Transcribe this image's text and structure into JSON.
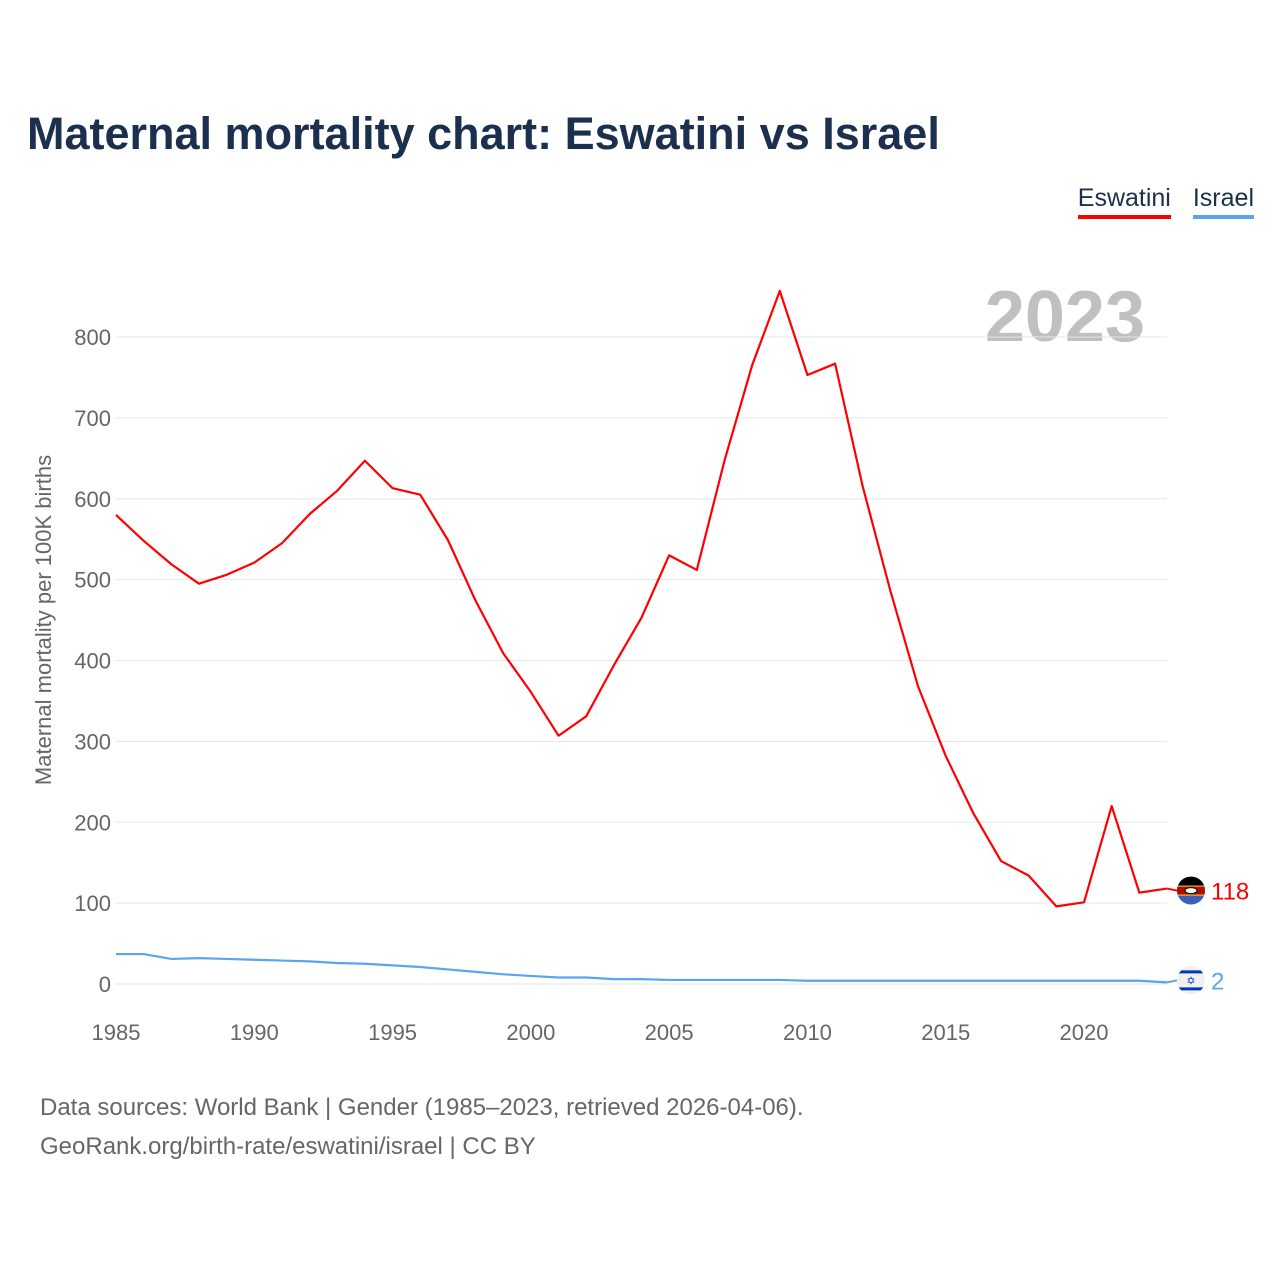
{
  "title": "Maternal mortality chart: Eswatini vs Israel",
  "source_line1": "Data sources: World Bank | Gender (1985–2023, retrieved 2026-04-06).",
  "source_line2": "GeoRank.org/birth-rate/eswatini/israel | CC BY",
  "chart_data": {
    "type": "line",
    "title": "Maternal mortality chart: Eswatini vs Israel",
    "ylabel": "Maternal mortality per 100K births",
    "xlabel": "",
    "year_label": "2023",
    "xlim": [
      1985,
      2023
    ],
    "ylim": [
      0,
      850
    ],
    "xticks": [
      1985,
      1990,
      1995,
      2000,
      2005,
      2010,
      2015,
      2020
    ],
    "yticks": [
      0,
      100,
      200,
      300,
      400,
      500,
      600,
      700,
      800
    ],
    "legend_position": "top-right",
    "x": [
      1985,
      1986,
      1987,
      1988,
      1989,
      1990,
      1991,
      1992,
      1993,
      1994,
      1995,
      1996,
      1997,
      1998,
      1999,
      2000,
      2001,
      2002,
      2003,
      2004,
      2005,
      2006,
      2007,
      2008,
      2009,
      2010,
      2011,
      2012,
      2013,
      2014,
      2015,
      2016,
      2017,
      2018,
      2019,
      2020,
      2021,
      2022,
      2023
    ],
    "series": [
      {
        "name": "Eswatini",
        "color": "#ff0000",
        "end_label": "118",
        "values": [
          580,
          548,
          519,
          495,
          506,
          521,
          545,
          581,
          610,
          647,
          613,
          605,
          549,
          474,
          409,
          361,
          307,
          331,
          394,
          453,
          530,
          512,
          647,
          765,
          857,
          753,
          767,
          615,
          486,
          368,
          282,
          211,
          152,
          134,
          96,
          101,
          220,
          113,
          118
        ]
      },
      {
        "name": "Israel",
        "color": "#5ba4ee",
        "end_label": "2",
        "values": [
          37,
          37,
          31,
          32,
          31,
          30,
          29,
          28,
          26,
          25,
          23,
          21,
          18,
          15,
          12,
          10,
          8,
          8,
          6,
          6,
          5,
          5,
          5,
          5,
          5,
          4,
          4,
          4,
          4,
          4,
          4,
          4,
          4,
          4,
          4,
          4,
          4,
          4,
          2
        ]
      }
    ]
  }
}
